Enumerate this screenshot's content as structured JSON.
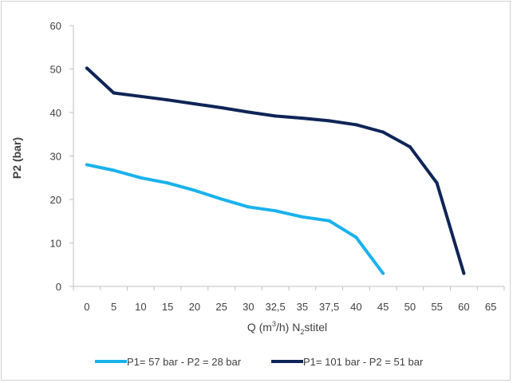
{
  "chart_data": {
    "type": "line",
    "title": "",
    "xlabel": {
      "pre": "Q (m",
      "sup": "3",
      "mid": "/h) N",
      "sub": "2",
      "post": "stitel"
    },
    "ylabel": "P2 (bar)",
    "categories": [
      "0",
      "5",
      "10",
      "15",
      "20",
      "25",
      "30",
      "32,5",
      "35",
      "37,5",
      "40",
      "45",
      "50",
      "55",
      "60",
      "65"
    ],
    "ylim": [
      0,
      60
    ],
    "yticks": [
      0,
      10,
      20,
      30,
      40,
      50,
      60
    ],
    "grid": false,
    "legend_position": "bottom",
    "series": [
      {
        "name": "P1= 57 bar - P2 = 28 bar",
        "color": "#19b2ec",
        "values": [
          28,
          26.7,
          25,
          23.8,
          22.1,
          20.1,
          18.3,
          17.4,
          16,
          15.1,
          11.3,
          3,
          null,
          null,
          null,
          null
        ]
      },
      {
        "name": "P1= 101 bar - P2 = 51 bar",
        "color": "#0f2557",
        "values": [
          50.2,
          44.5,
          43.7,
          42.9,
          42,
          41.1,
          40.1,
          39.2,
          38.7,
          38.1,
          37.2,
          35.5,
          32.1,
          23.8,
          3,
          null
        ]
      }
    ]
  }
}
